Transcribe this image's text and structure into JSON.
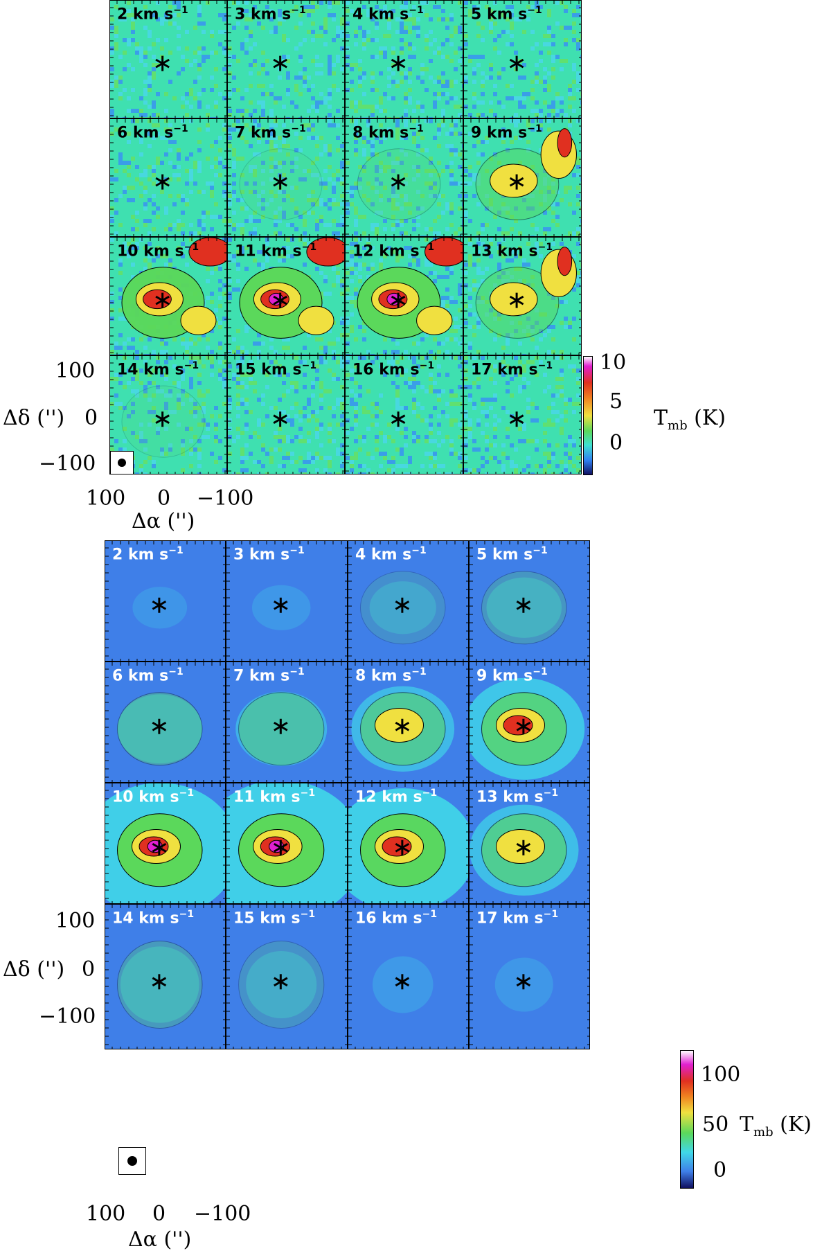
{
  "figures": [
    {
      "id": "top",
      "theme": "noisy",
      "panels": [
        {
          "label": "2 km s",
          "exp": "−1",
          "level": 0.05
        },
        {
          "label": "3 km s",
          "exp": "−1",
          "level": 0.05
        },
        {
          "label": "4 km s",
          "exp": "−1",
          "level": 0.05
        },
        {
          "label": "5 km s",
          "exp": "−1",
          "level": 0.05
        },
        {
          "label": "6 km s",
          "exp": "−1",
          "level": 0.08
        },
        {
          "label": "7 km s",
          "exp": "−1",
          "level": 0.12
        },
        {
          "label": "8 km s",
          "exp": "−1",
          "level": 0.2
        },
        {
          "label": "9 km s",
          "exp": "−1",
          "level": 0.4
        },
        {
          "label": "10 km s",
          "exp": "−1",
          "level": 0.8
        },
        {
          "label": "11 km s",
          "exp": "−1",
          "level": 0.95
        },
        {
          "label": "12 km s",
          "exp": "−1",
          "level": 0.85
        },
        {
          "label": "13 km s",
          "exp": "−1",
          "level": 0.4
        },
        {
          "label": "14 km s",
          "exp": "−1",
          "level": 0.12
        },
        {
          "label": "15 km s",
          "exp": "−1",
          "level": 0.06
        },
        {
          "label": "16 km s",
          "exp": "−1",
          "level": 0.05
        },
        {
          "label": "17 km s",
          "exp": "−1",
          "level": 0.05
        }
      ],
      "colorbar": {
        "ticks": [
          "10",
          "5",
          "0"
        ],
        "label_main": "T",
        "label_sub": "mb",
        "label_unit": " (K)"
      },
      "y_ticks": [
        "100",
        "0",
        "−100"
      ],
      "x_ticks": [
        "100",
        "0",
        "−100"
      ],
      "y_title": "Δδ ('')",
      "x_title": "Δα ('')"
    },
    {
      "id": "bottom",
      "theme": "smooth",
      "panels": [
        {
          "label": "2 km s",
          "exp": "−1",
          "level": 0.05
        },
        {
          "label": "3 km s",
          "exp": "−1",
          "level": 0.08
        },
        {
          "label": "4 km s",
          "exp": "−1",
          "level": 0.15
        },
        {
          "label": "5 km s",
          "exp": "−1",
          "level": 0.22
        },
        {
          "label": "6 km s",
          "exp": "−1",
          "level": 0.3
        },
        {
          "label": "7 km s",
          "exp": "−1",
          "level": 0.35
        },
        {
          "label": "8 km s",
          "exp": "−1",
          "level": 0.45
        },
        {
          "label": "9 km s",
          "exp": "−1",
          "level": 0.6
        },
        {
          "label": "10 km s",
          "exp": "−1",
          "level": 0.9
        },
        {
          "label": "11 km s",
          "exp": "−1",
          "level": 0.95
        },
        {
          "label": "12 km s",
          "exp": "−1",
          "level": 0.8
        },
        {
          "label": "13 km s",
          "exp": "−1",
          "level": 0.5
        },
        {
          "label": "14 km s",
          "exp": "−1",
          "level": 0.25
        },
        {
          "label": "15 km s",
          "exp": "−1",
          "level": 0.18
        },
        {
          "label": "16 km s",
          "exp": "−1",
          "level": 0.1
        },
        {
          "label": "17 km s",
          "exp": "−1",
          "level": 0.08
        }
      ],
      "colorbar": {
        "ticks": [
          "100",
          "50",
          "0"
        ],
        "label_main": "T",
        "label_sub": "mb",
        "label_unit": " (K)"
      },
      "y_ticks": [
        "100",
        "0",
        "−100"
      ],
      "x_ticks": [
        "100",
        "0",
        "−100"
      ],
      "y_title": "Δδ ('')",
      "x_title": "Δα ('')"
    }
  ],
  "colors": {
    "noisy_bg": "#3fe0b0",
    "smooth_bg": "#3f7fe8",
    "green": "#5bd85b",
    "yellow": "#f0e040",
    "red": "#e03020",
    "magenta": "#e020d0",
    "cyan": "#40d8e8"
  },
  "chart_data": [
    {
      "type": "heatmap",
      "title": "",
      "xlabel": "Δα ('')",
      "ylabel": "Δδ ('')",
      "x_ticks": [
        100,
        0,
        -100
      ],
      "y_ticks": [
        100,
        0,
        -100
      ],
      "panels": [
        "2 km s−1",
        "3 km s−1",
        "4 km s−1",
        "5 km s−1",
        "6 km s−1",
        "7 km s−1",
        "8 km s−1",
        "9 km s−1",
        "10 km s−1",
        "11 km s−1",
        "12 km s−1",
        "13 km s−1",
        "14 km s−1",
        "15 km s−1",
        "16 km s−1",
        "17 km s−1"
      ],
      "colorbar": {
        "label": "Tmb (K)",
        "ticks": [
          10,
          5,
          0
        ],
        "range": [
          -2,
          11
        ]
      }
    },
    {
      "type": "heatmap",
      "title": "",
      "xlabel": "Δα ('')",
      "ylabel": "Δδ ('')",
      "x_ticks": [
        100,
        0,
        -100
      ],
      "y_ticks": [
        100,
        0,
        -100
      ],
      "panels": [
        "2 km s−1",
        "3 km s−1",
        "4 km s−1",
        "5 km s−1",
        "6 km s−1",
        "7 km s−1",
        "8 km s−1",
        "9 km s−1",
        "10 km s−1",
        "11 km s−1",
        "12 km s−1",
        "13 km s−1",
        "14 km s−1",
        "15 km s−1",
        "16 km s−1",
        "17 km s−1"
      ],
      "colorbar": {
        "label": "Tmb (K)",
        "ticks": [
          100,
          50,
          0
        ],
        "range": [
          -15,
          120
        ]
      }
    }
  ]
}
